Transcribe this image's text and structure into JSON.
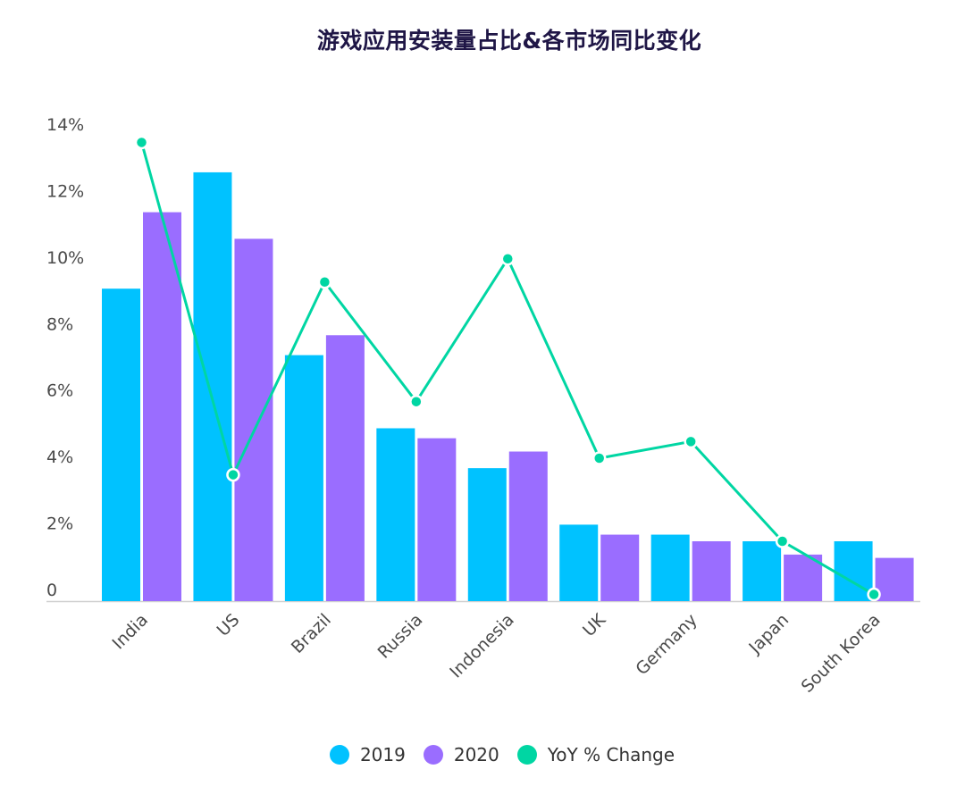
{
  "chart_data": {
    "type": "bar",
    "title": "游戏应用安装量占比&各市场同比变化",
    "categories": [
      "India",
      "US",
      "Brazil",
      "Russia",
      "Indonesia",
      "UK",
      "Germany",
      "Japan",
      "South Korea"
    ],
    "series": [
      {
        "name": "2019",
        "type": "bar",
        "color": "#00c2ff",
        "values": [
          9.4,
          12.9,
          7.4,
          5.2,
          4.0,
          2.3,
          2.0,
          1.8,
          1.8
        ]
      },
      {
        "name": "2020",
        "type": "bar",
        "color": "#9a6dff",
        "values": [
          11.7,
          10.9,
          8.0,
          4.9,
          4.5,
          2.0,
          1.8,
          1.4,
          1.3
        ]
      },
      {
        "name": "YoY % Change",
        "type": "line",
        "color": "#00d6a3",
        "values": [
          13.8,
          3.8,
          9.6,
          6.0,
          10.3,
          4.3,
          4.8,
          1.8,
          0.2
        ]
      }
    ],
    "y_ticks": [
      "0",
      "2%",
      "4%",
      "6%",
      "8%",
      "10%",
      "12%",
      "14%"
    ],
    "ylim": [
      0,
      14.4
    ],
    "xlabel": "",
    "ylabel": "",
    "grid": false,
    "legend_position": "bottom"
  }
}
